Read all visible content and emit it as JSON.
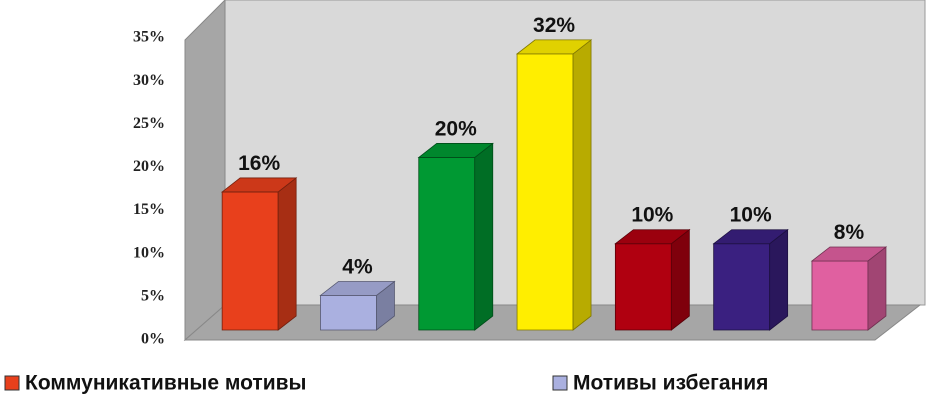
{
  "chart_data": {
    "type": "bar3d",
    "series": [
      {
        "name": "Коммуникативные мотивы",
        "color": "#e8401c",
        "values": [
          16
        ],
        "value_labels": [
          "16%"
        ]
      },
      {
        "name": "Мотивы избегания",
        "color": "#aab0e0",
        "values": [
          4
        ],
        "value_labels": [
          "4%"
        ]
      },
      {
        "name": null,
        "color": "#009933",
        "values": [
          20
        ],
        "value_labels": [
          "20%"
        ]
      },
      {
        "name": null,
        "color": "#ffee00",
        "values": [
          32
        ],
        "value_labels": [
          "32%"
        ]
      },
      {
        "name": null,
        "color": "#b00010",
        "values": [
          10
        ],
        "value_labels": [
          "10%"
        ]
      },
      {
        "name": null,
        "color": "#3a2080",
        "values": [
          10
        ],
        "value_labels": [
          "10%"
        ]
      },
      {
        "name": null,
        "color": "#e060a0",
        "values": [
          8
        ],
        "value_labels": [
          "8%"
        ]
      }
    ],
    "ylim": [
      0,
      35
    ],
    "yticks": [
      {
        "value": 0,
        "label": "0%"
      },
      {
        "value": 5,
        "label": "5%"
      },
      {
        "value": 10,
        "label": "10%"
      },
      {
        "value": 15,
        "label": "15%"
      },
      {
        "value": 20,
        "label": "20%"
      },
      {
        "value": 25,
        "label": "25%"
      },
      {
        "value": 30,
        "label": "30%"
      },
      {
        "value": 35,
        "label": "35%"
      }
    ]
  }
}
